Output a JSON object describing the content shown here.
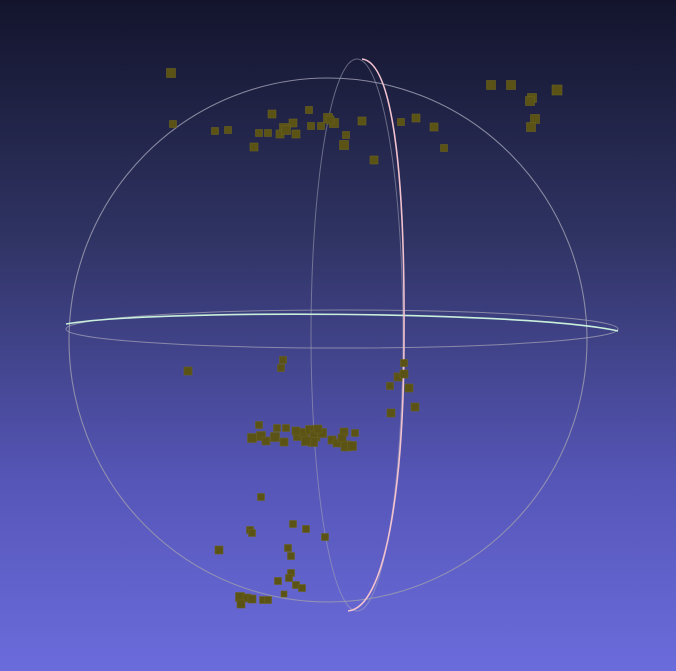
{
  "viewer": {
    "background_top": "#13142c",
    "background_bottom": "#6b6cdc"
  },
  "trackball": {
    "sphere_color": "#9a9aae",
    "horizontal_ring_color": "#c8f0dc",
    "vertical_ring_color": "#f2c3cf"
  },
  "point_cloud": {
    "color": "#5b5316",
    "stroke": "#6a6220"
  }
}
